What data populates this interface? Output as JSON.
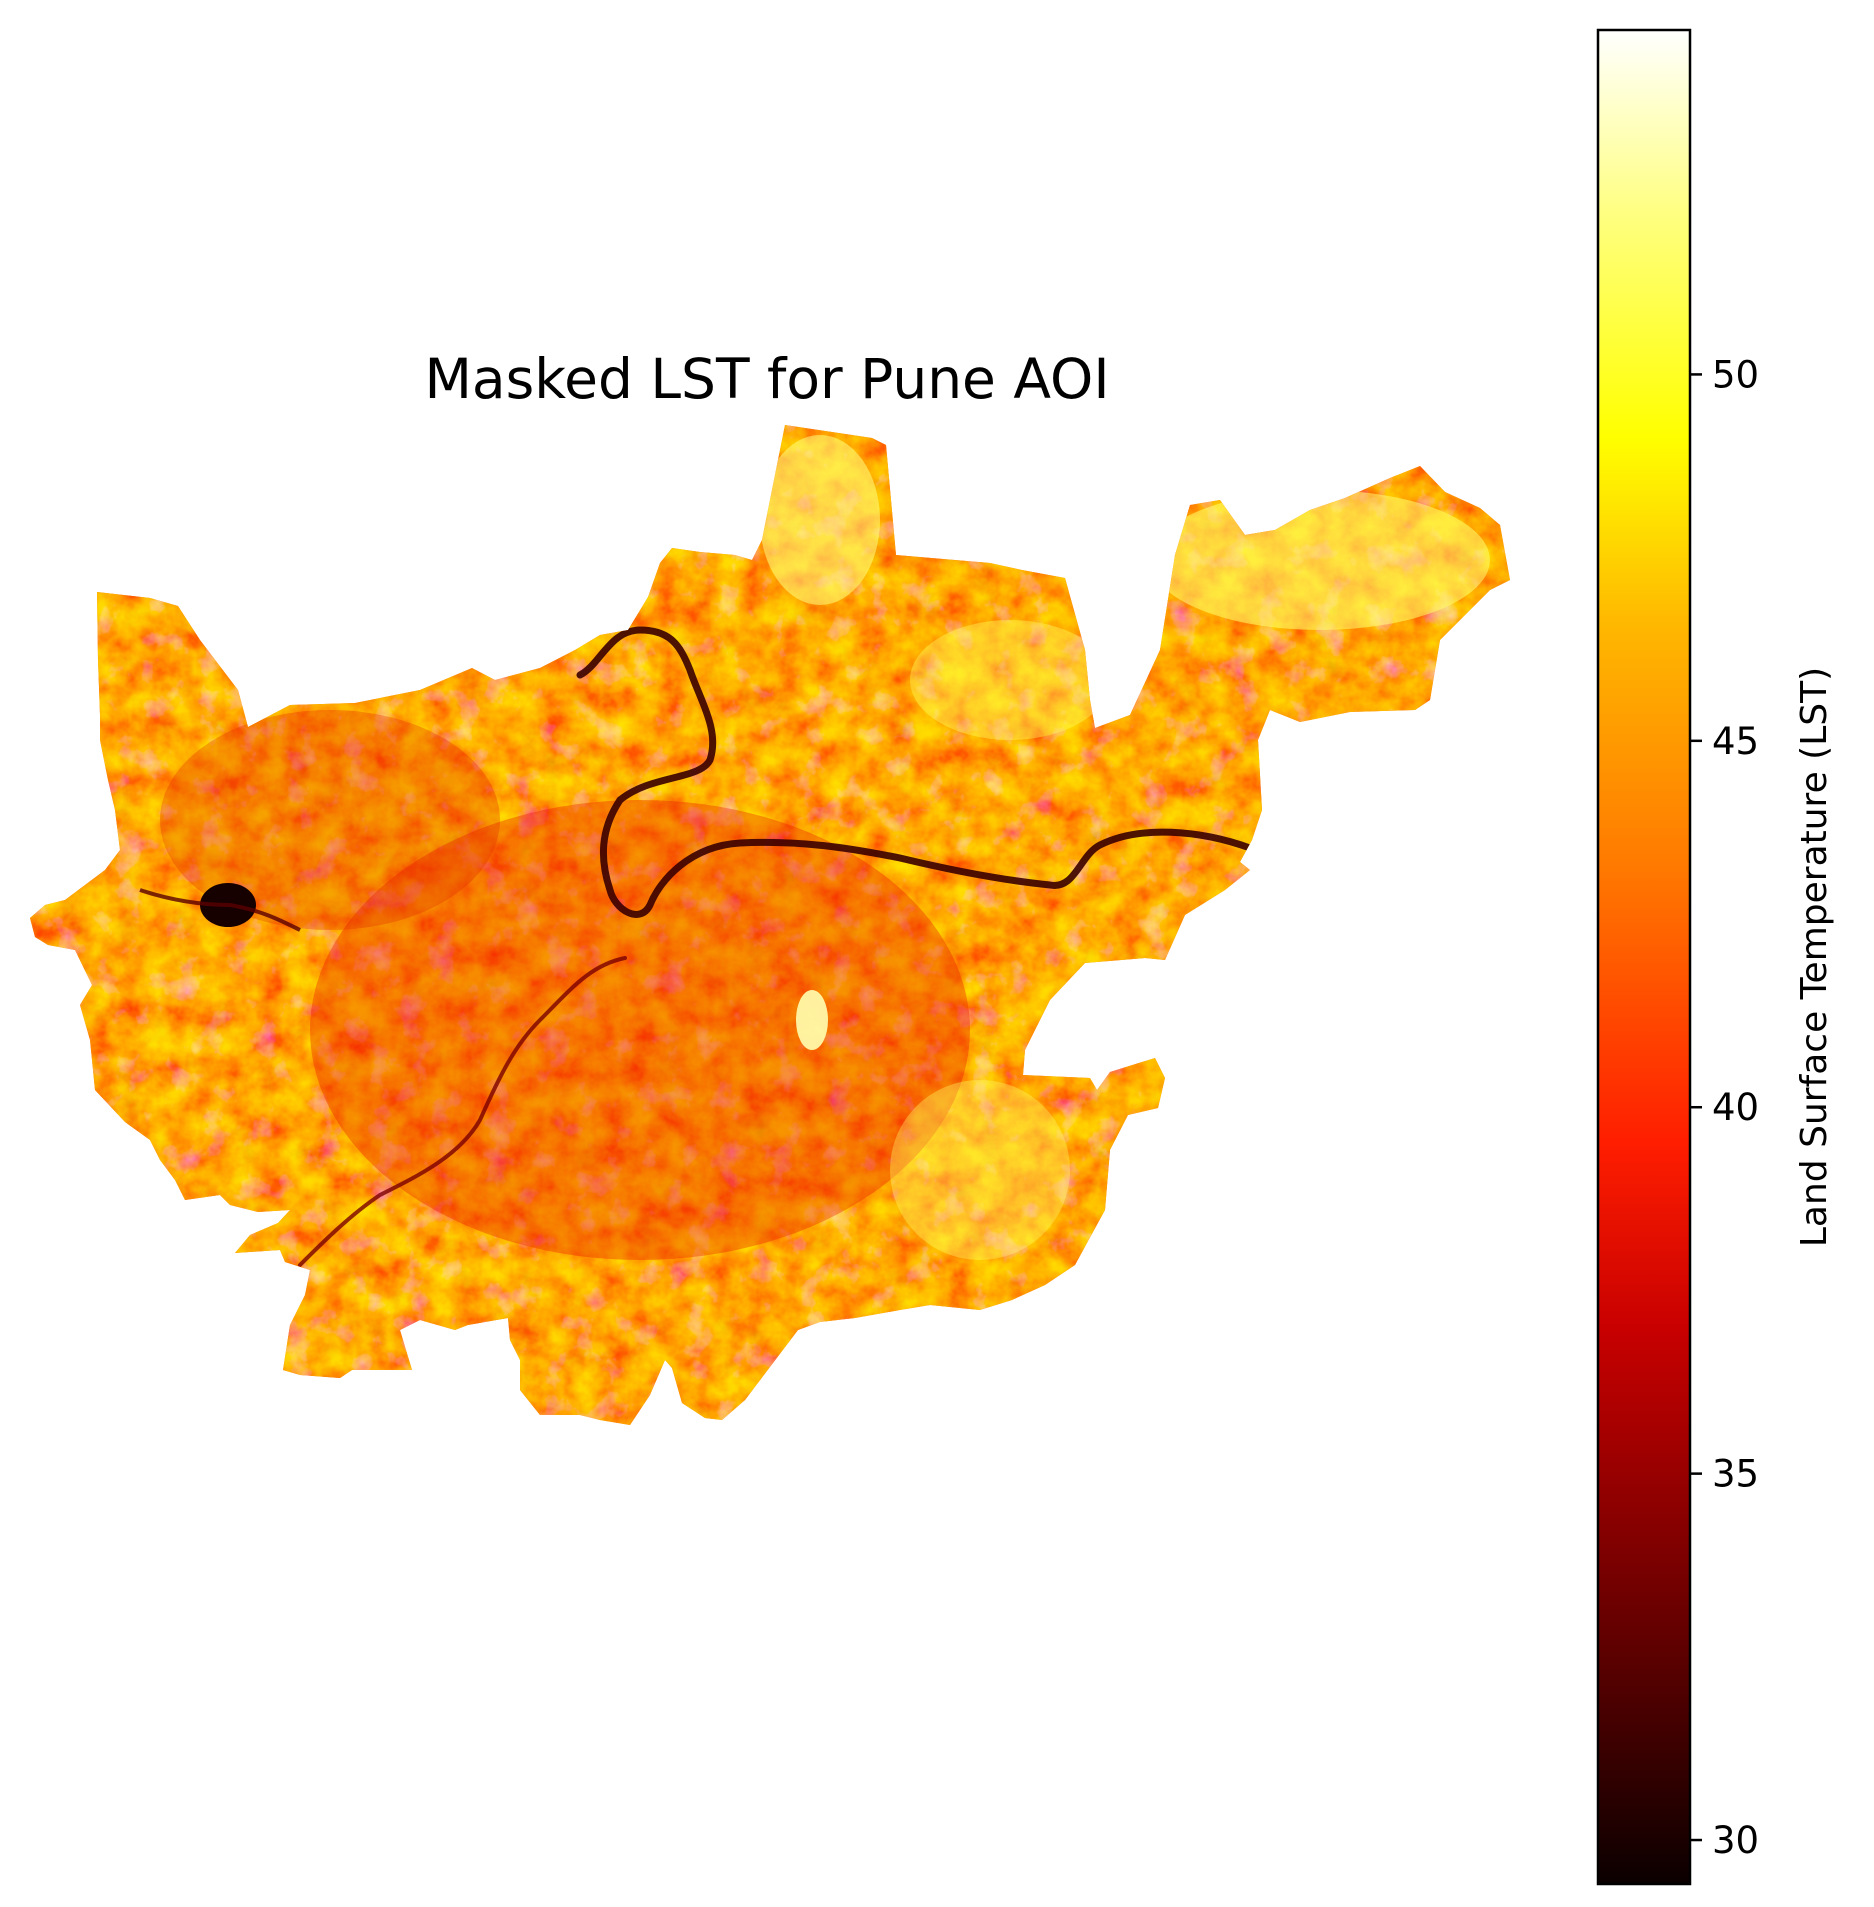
{
  "chart_data": {
    "type": "heatmap",
    "title": "Masked LST for Pune AOI",
    "colormap": "hot",
    "colorbar": {
      "label": "Land Surface Temperature (LST)",
      "range": [
        29.4,
        54.7
      ],
      "ticks": [
        30,
        35,
        40,
        45,
        50
      ],
      "tick_labels": [
        "30",
        "35",
        "40",
        "45",
        "50"
      ],
      "placement": "right"
    },
    "axes": "off",
    "region": "Pune AOI",
    "masked_outside_region": true,
    "value_distribution": {
      "dominant_range": [
        40,
        50
      ],
      "min_value_visible": 29.5,
      "max_value_visible": 54.7
    },
    "colors": {
      "background": "#ffffff",
      "cold": "#0b0000",
      "mid": "#ff2a00",
      "warm": "#ffb000",
      "hot": "#ffffff"
    }
  }
}
